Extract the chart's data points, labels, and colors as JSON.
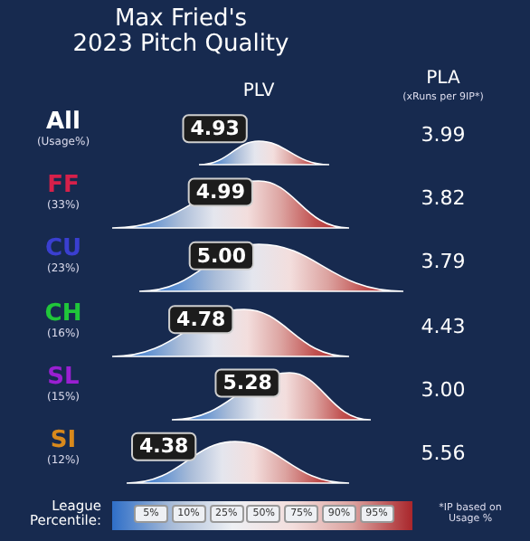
{
  "chart_data": {
    "type": "other",
    "title": "Max Fried's\n2023 Pitch Quality",
    "categories": [
      "All\n(Usage%)",
      "FF\n(33%)",
      "CU\n(23%)",
      "CH\n(16%)",
      "SL\n(15%)",
      "SI\n(12%)"
    ],
    "colors": [
      "#ffffff",
      "#d6204a",
      "#3a3fd0",
      "#20c63a",
      "#9a1fd2",
      "#d9891c"
    ],
    "series": [
      {
        "name": "PLV",
        "values": [
          4.93,
          4.99,
          5.0,
          4.78,
          5.28,
          4.38
        ],
        "value_labels": [
          "4.93",
          "4.99",
          "5.00",
          "4.78",
          "5.28",
          "4.38"
        ]
      },
      {
        "name": "PLA\n(xRuns per 9IP*)",
        "values": [
          3.99,
          3.82,
          3.79,
          4.43,
          3.0,
          5.56
        ],
        "value_labels": [
          "3.99",
          "3.82",
          "3.79",
          "4.43",
          "3.00",
          "5.56"
        ]
      }
    ],
    "data_labels": true,
    "legend_title": "League\nPercentile:",
    "annotations": [
      "5%",
      "10%",
      "25%",
      "50%",
      "75%",
      "90%",
      "95%",
      "*IP based on\nUsage %"
    ]
  }
}
